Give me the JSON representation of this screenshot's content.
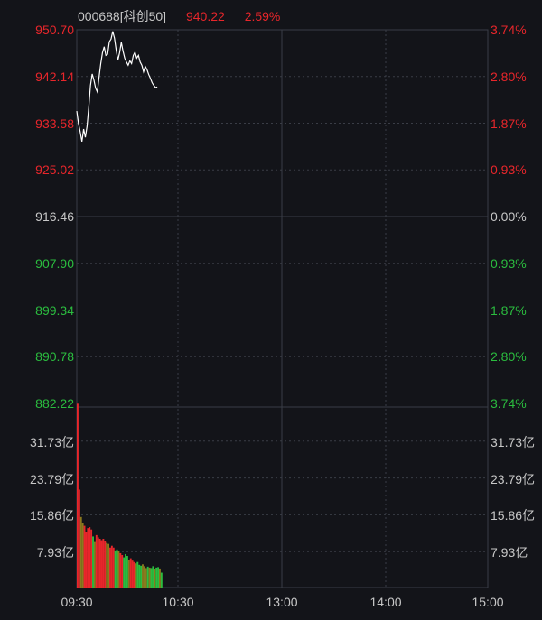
{
  "header": {
    "code": "000688[科创50]",
    "price": "940.22",
    "change": "2.59%"
  },
  "colors": {
    "up": "#e8262b",
    "down": "#2bbd3f",
    "neutral": "#c8c8c8",
    "line": "#ffffff",
    "grid": "#3a3d46",
    "background": "#131419"
  },
  "price_axis_left": [
    "950.70",
    "942.14",
    "933.58",
    "925.02",
    "916.46",
    "907.90",
    "899.34",
    "890.78",
    "882.22"
  ],
  "price_axis_right": [
    "3.74%",
    "2.80%",
    "1.87%",
    "0.93%",
    "0.00%",
    "0.93%",
    "1.87%",
    "2.80%",
    "3.74%"
  ],
  "volume_axis": [
    "31.73亿",
    "23.79亿",
    "15.86亿",
    "7.93亿"
  ],
  "time_axis": [
    "09:30",
    "10:30",
    "13:00",
    "14:00",
    "15:00"
  ],
  "chart_data": {
    "type": "line",
    "price_range": [
      882.22,
      950.7
    ],
    "prev_close": 916.46,
    "volume_range_yi": [
      0,
      39.66
    ],
    "session_minutes": 240,
    "price_series": [
      [
        0,
        935.8
      ],
      [
        1,
        933.5
      ],
      [
        2,
        932.0
      ],
      [
        3,
        930.2
      ],
      [
        4,
        932.5
      ],
      [
        5,
        931.0
      ],
      [
        6,
        933.0
      ],
      [
        7,
        936.5
      ],
      [
        8,
        940.5
      ],
      [
        9,
        942.6
      ],
      [
        10,
        941.5
      ],
      [
        11,
        940.0
      ],
      [
        12,
        939.3
      ],
      [
        13,
        942.0
      ],
      [
        14,
        944.5
      ],
      [
        15,
        946.5
      ],
      [
        16,
        947.6
      ],
      [
        17,
        946.0
      ],
      [
        18,
        946.2
      ],
      [
        19,
        948.5
      ],
      [
        20,
        949.0
      ],
      [
        21,
        950.4
      ],
      [
        22,
        949.2
      ],
      [
        23,
        947.0
      ],
      [
        24,
        945.1
      ],
      [
        25,
        946.5
      ],
      [
        26,
        948.4
      ],
      [
        27,
        946.8
      ],
      [
        28,
        945.5
      ],
      [
        29,
        944.8
      ],
      [
        30,
        944.2
      ],
      [
        31,
        945.0
      ],
      [
        32,
        944.5
      ],
      [
        33,
        946.0
      ],
      [
        34,
        946.6
      ],
      [
        35,
        945.5
      ],
      [
        36,
        946.0
      ],
      [
        37,
        944.8
      ],
      [
        38,
        944.2
      ],
      [
        39,
        943.0
      ],
      [
        40,
        944.0
      ],
      [
        41,
        943.4
      ],
      [
        42,
        942.5
      ],
      [
        43,
        941.8
      ],
      [
        44,
        941.0
      ],
      [
        45,
        940.5
      ],
      [
        46,
        940.1
      ],
      [
        47,
        940.22
      ]
    ],
    "volume_series_yi": [
      39.6,
      21.1,
      15.2,
      14.0,
      13.3,
      12.0,
      12.8,
      13.0,
      12.5,
      11.0,
      9.8,
      11.3,
      10.8,
      10.5,
      10.2,
      10.5,
      10.0,
      9.6,
      9.4,
      8.6,
      9.0,
      8.6,
      8.0,
      8.2,
      7.8,
      7.4,
      7.0,
      6.5,
      7.2,
      6.8,
      6.0,
      6.3,
      5.8,
      5.5,
      5.2,
      5.5,
      4.9,
      4.7,
      5.0,
      4.6,
      4.2,
      4.5,
      4.3,
      4.2,
      4.6,
      4.0,
      4.3,
      4.4,
      4.1,
      3.2
    ],
    "volume_colors": [
      "u",
      "u",
      "n",
      "n",
      "u",
      "u",
      "u",
      "u",
      "u",
      "d",
      "n",
      "u",
      "u",
      "u",
      "u",
      "u",
      "u",
      "n",
      "n",
      "u",
      "u",
      "u",
      "d",
      "d",
      "n",
      "u",
      "u",
      "d",
      "d",
      "d",
      "n",
      "u",
      "u",
      "u",
      "n",
      "d",
      "d",
      "d",
      "n",
      "n",
      "n",
      "d",
      "n",
      "d",
      "d",
      "n",
      "d",
      "d",
      "n",
      "d"
    ]
  }
}
